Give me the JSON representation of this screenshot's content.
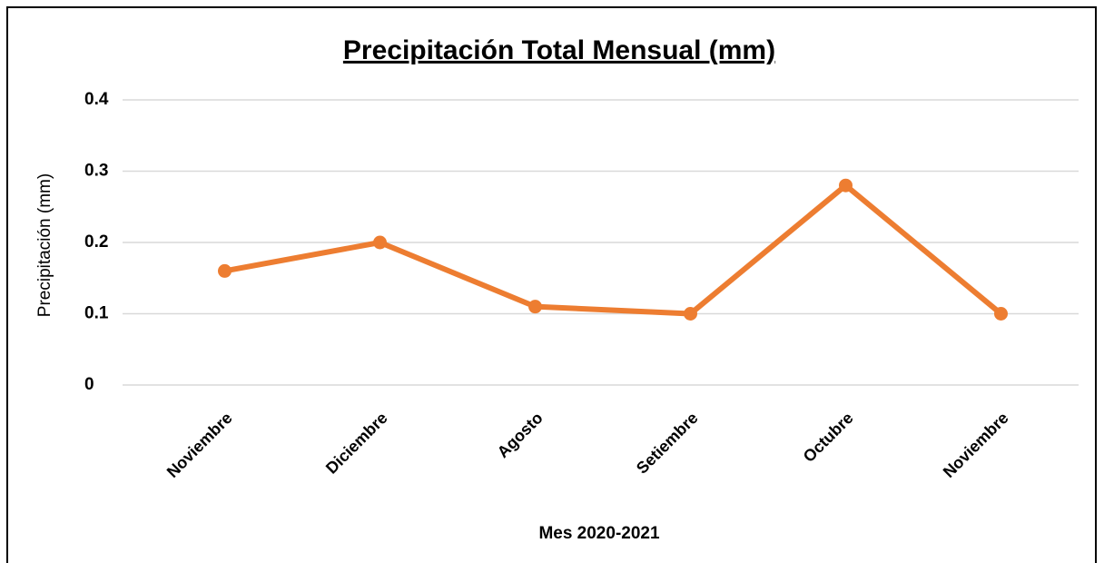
{
  "chart_data": {
    "type": "line",
    "title": "Precipitación Total Mensual (mm)",
    "x_label": "Mes 2020-2021",
    "y_label": "Precipitación (mm)",
    "categories": [
      "Noviembre",
      "Diciembre",
      "Agosto",
      "Setiembre",
      "Octubre",
      "Noviembre"
    ],
    "series": [
      {
        "name": "Precipitación",
        "color": "#ed7d31",
        "values": [
          0.16,
          0.2,
          0.11,
          0.1,
          0.28,
          0.1
        ]
      }
    ],
    "ylim": [
      0,
      0.4
    ],
    "yticks": [
      0,
      0.1,
      0.2,
      0.3,
      0.4
    ],
    "grid": true
  }
}
